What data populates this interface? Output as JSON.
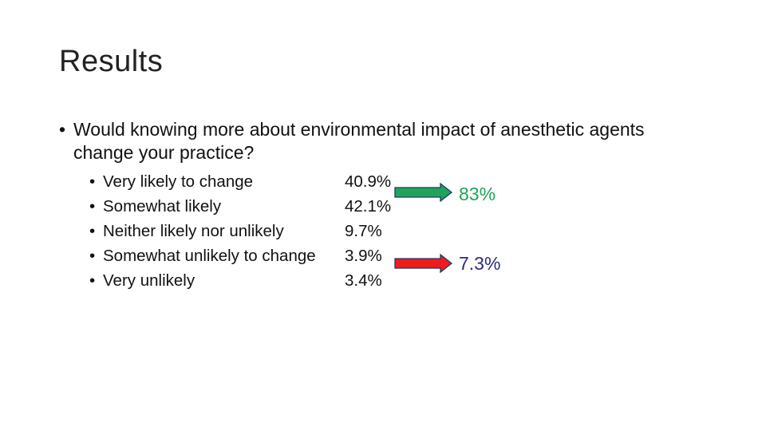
{
  "slide": {
    "title": "Results",
    "question_bullet": "•",
    "question": "Would knowing more about environmental impact of anesthetic agents change your practice?",
    "responses": [
      {
        "label": "Very likely to change",
        "value": "40.9%"
      },
      {
        "label": "Somewhat likely",
        "value": "42.1%"
      },
      {
        "label": "Neither likely nor unlikely",
        "value": "9.7%"
      },
      {
        "label": "Somewhat unlikely to change",
        "value": "3.9%"
      },
      {
        "label": "Very unlikely",
        "value": "3.4%"
      }
    ],
    "item_bullet": "•",
    "summary_likely": "83%",
    "summary_unlikely": "7.3%",
    "colors": {
      "likely_arrow": "#21a35a",
      "unlikely_arrow": "#ee1c1c",
      "arrow_outline": "#1f3a6b",
      "likely_text": "#21a35a",
      "unlikely_text": "#2a2a80"
    },
    "icons": {
      "likely_arrow": "right-arrow-icon",
      "unlikely_arrow": "right-arrow-icon"
    }
  }
}
